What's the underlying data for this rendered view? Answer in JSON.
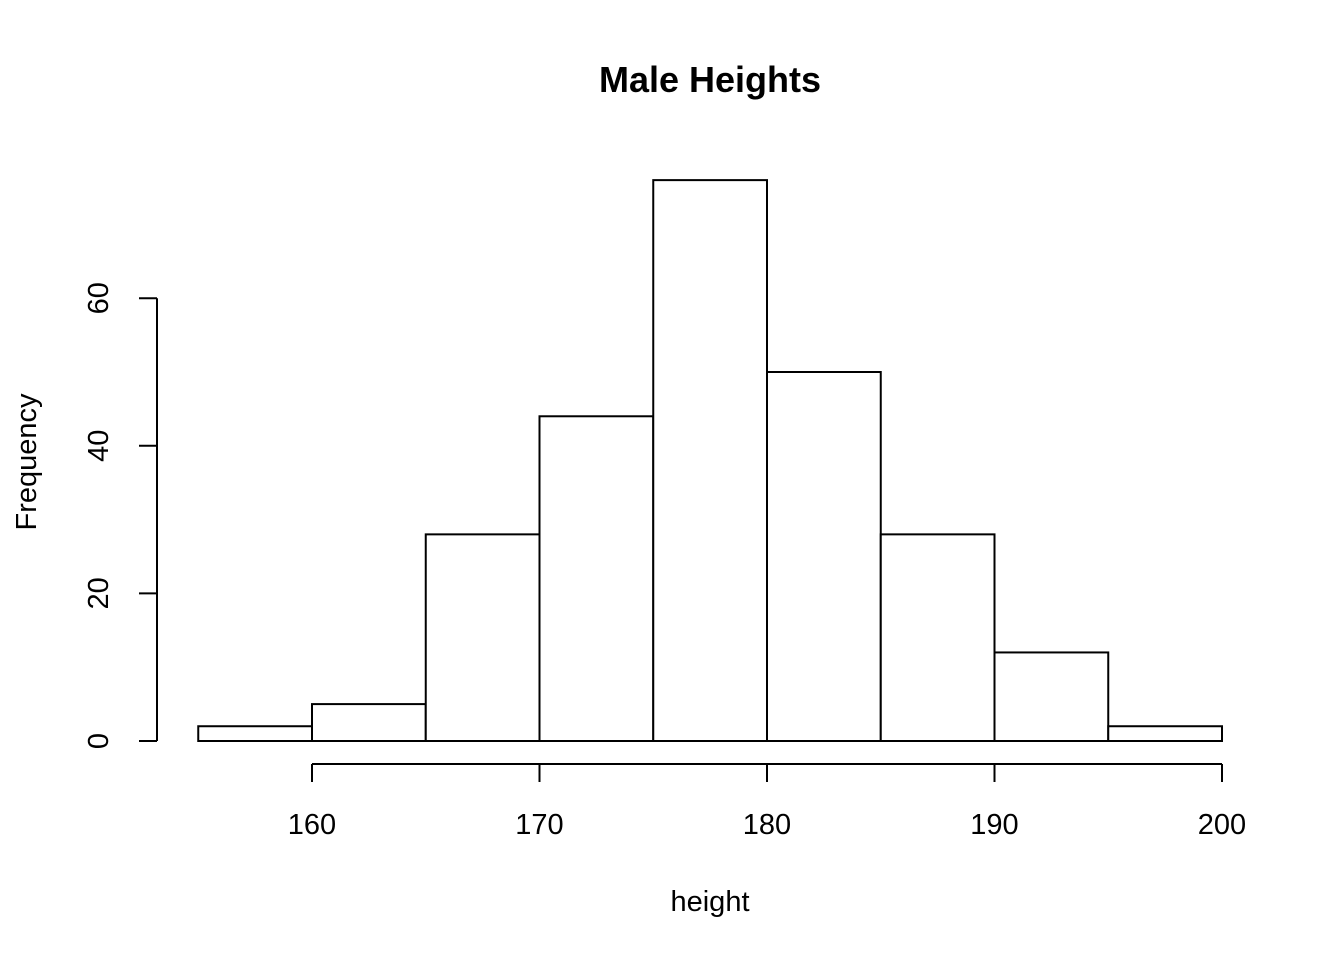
{
  "chart_data": {
    "type": "bar",
    "subtype": "histogram",
    "title": "Male Heights",
    "xlabel": "height",
    "ylabel": "Frequency",
    "bins": [
      {
        "start": 155,
        "end": 160,
        "count": 2
      },
      {
        "start": 160,
        "end": 165,
        "count": 5
      },
      {
        "start": 165,
        "end": 170,
        "count": 28
      },
      {
        "start": 170,
        "end": 175,
        "count": 44
      },
      {
        "start": 175,
        "end": 180,
        "count": 76
      },
      {
        "start": 180,
        "end": 185,
        "count": 50
      },
      {
        "start": 185,
        "end": 190,
        "count": 28
      },
      {
        "start": 190,
        "end": 195,
        "count": 12
      },
      {
        "start": 195,
        "end": 200,
        "count": 2
      }
    ],
    "x_ticks": [
      160,
      170,
      180,
      190,
      200
    ],
    "y_ticks": [
      0,
      20,
      40,
      60
    ],
    "xlim": [
      155,
      200
    ],
    "ylim": [
      0,
      76
    ],
    "grid": false,
    "colors": {
      "bar_fill": "#ffffff",
      "bar_stroke": "#000000"
    }
  }
}
